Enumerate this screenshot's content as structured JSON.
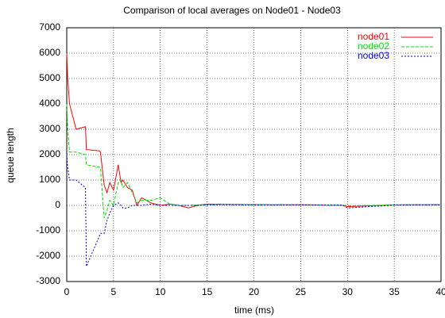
{
  "chart_data": {
    "type": "line",
    "title": "Comparison of local averages on Node01 - Node03",
    "x_label": "time (ms)",
    "y_label": "queue length",
    "x": [
      0,
      0.1,
      0.3,
      1,
      2,
      2.1,
      3.5,
      3.6,
      4,
      4.3,
      4.6,
      5,
      5.5,
      5.8,
      6,
      6.5,
      7,
      7.5,
      8,
      9,
      10,
      11,
      12,
      13,
      14,
      15,
      17,
      20,
      25,
      29.5,
      30,
      35,
      40
    ],
    "series": [
      {
        "name": "node01",
        "color": "#ff0000",
        "dash": "none",
        "values": [
          6000,
          5000,
          4000,
          3000,
          3100,
          2200,
          2150,
          2100,
          800,
          500,
          900,
          600,
          1600,
          900,
          1000,
          700,
          600,
          0,
          300,
          100,
          0,
          50,
          0,
          -100,
          0,
          50,
          40,
          30,
          20,
          0,
          -50,
          20,
          30
        ]
      },
      {
        "name": "node02",
        "color": "#00dd00",
        "dash": "4,2",
        "values": [
          4000,
          3000,
          2100,
          2100,
          2000,
          1600,
          1500,
          1500,
          -500,
          -200,
          200,
          0,
          900,
          1000,
          700,
          900,
          500,
          100,
          200,
          200,
          300,
          50,
          0,
          0,
          20,
          30,
          40,
          20,
          30,
          10,
          -20,
          20,
          30
        ]
      },
      {
        "name": "node03",
        "color": "#0000ff",
        "dash": "2,2",
        "values": [
          2000,
          1500,
          1000,
          1000,
          700,
          -2400,
          -1200,
          -1100,
          -1100,
          -600,
          -300,
          0,
          100,
          0,
          -100,
          -100,
          0,
          0,
          0,
          50,
          0,
          0,
          0,
          0,
          0,
          20,
          30,
          10,
          20,
          10,
          -100,
          10,
          20
        ]
      }
    ],
    "xlim": [
      0,
      40
    ],
    "xticks": [
      0,
      5,
      10,
      15,
      20,
      25,
      30,
      35,
      40
    ],
    "ylim": [
      -3000,
      7000
    ],
    "yticks": [
      -3000,
      -2000,
      -1000,
      0,
      1000,
      2000,
      3000,
      4000,
      5000,
      6000,
      7000
    ],
    "grid": true,
    "legend": "top-right"
  }
}
